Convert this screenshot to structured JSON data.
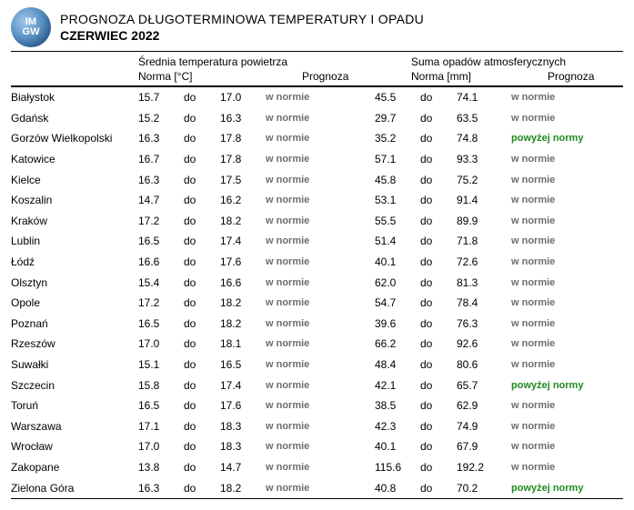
{
  "title": "PROGNOZA DŁUGOTERMINOWA TEMPERATURY I OPADU",
  "subtitle": "CZERWIEC 2022",
  "logo_text_top": "IM",
  "logo_text_bottom": "GW",
  "columns": {
    "temp_group": "Średnia temperatura powietrza",
    "precip_group": "Suma opadów atmosferycznych",
    "norma_temp": "Norma [°C]",
    "norma_precip": "Norma [mm]",
    "prognoza": "Prognoza",
    "do": "do"
  },
  "forecast_labels": {
    "normal": "w normie",
    "above": "powyżej normy"
  },
  "colors": {
    "normal": "#6e6e6e",
    "above": "#1f8a1f",
    "text": "#000000",
    "background": "#ffffff"
  },
  "rows": [
    {
      "city": "Białystok",
      "t_lo": "15.7",
      "t_hi": "17.0",
      "t_fc": "normal",
      "p_lo": "45.5",
      "p_hi": "74.1",
      "p_fc": "normal"
    },
    {
      "city": "Gdańsk",
      "t_lo": "15.2",
      "t_hi": "16.3",
      "t_fc": "normal",
      "p_lo": "29.7",
      "p_hi": "63.5",
      "p_fc": "normal"
    },
    {
      "city": "Gorzów Wielkopolski",
      "t_lo": "16.3",
      "t_hi": "17.8",
      "t_fc": "normal",
      "p_lo": "35.2",
      "p_hi": "74.8",
      "p_fc": "above"
    },
    {
      "city": "Katowice",
      "t_lo": "16.7",
      "t_hi": "17.8",
      "t_fc": "normal",
      "p_lo": "57.1",
      "p_hi": "93.3",
      "p_fc": "normal"
    },
    {
      "city": "Kielce",
      "t_lo": "16.3",
      "t_hi": "17.5",
      "t_fc": "normal",
      "p_lo": "45.8",
      "p_hi": "75.2",
      "p_fc": "normal"
    },
    {
      "city": "Koszalin",
      "t_lo": "14.7",
      "t_hi": "16.2",
      "t_fc": "normal",
      "p_lo": "53.1",
      "p_hi": "91.4",
      "p_fc": "normal"
    },
    {
      "city": "Kraków",
      "t_lo": "17.2",
      "t_hi": "18.2",
      "t_fc": "normal",
      "p_lo": "55.5",
      "p_hi": "89.9",
      "p_fc": "normal"
    },
    {
      "city": "Lublin",
      "t_lo": "16.5",
      "t_hi": "17.4",
      "t_fc": "normal",
      "p_lo": "51.4",
      "p_hi": "71.8",
      "p_fc": "normal"
    },
    {
      "city": "Łódź",
      "t_lo": "16.6",
      "t_hi": "17.6",
      "t_fc": "normal",
      "p_lo": "40.1",
      "p_hi": "72.6",
      "p_fc": "normal"
    },
    {
      "city": "Olsztyn",
      "t_lo": "15.4",
      "t_hi": "16.6",
      "t_fc": "normal",
      "p_lo": "62.0",
      "p_hi": "81.3",
      "p_fc": "normal"
    },
    {
      "city": "Opole",
      "t_lo": "17.2",
      "t_hi": "18.2",
      "t_fc": "normal",
      "p_lo": "54.7",
      "p_hi": "78.4",
      "p_fc": "normal"
    },
    {
      "city": "Poznań",
      "t_lo": "16.5",
      "t_hi": "18.2",
      "t_fc": "normal",
      "p_lo": "39.6",
      "p_hi": "76.3",
      "p_fc": "normal"
    },
    {
      "city": "Rzeszów",
      "t_lo": "17.0",
      "t_hi": "18.1",
      "t_fc": "normal",
      "p_lo": "66.2",
      "p_hi": "92.6",
      "p_fc": "normal"
    },
    {
      "city": "Suwałki",
      "t_lo": "15.1",
      "t_hi": "16.5",
      "t_fc": "normal",
      "p_lo": "48.4",
      "p_hi": "80.6",
      "p_fc": "normal"
    },
    {
      "city": "Szczecin",
      "t_lo": "15.8",
      "t_hi": "17.4",
      "t_fc": "normal",
      "p_lo": "42.1",
      "p_hi": "65.7",
      "p_fc": "above"
    },
    {
      "city": "Toruń",
      "t_lo": "16.5",
      "t_hi": "17.6",
      "t_fc": "normal",
      "p_lo": "38.5",
      "p_hi": "62.9",
      "p_fc": "normal"
    },
    {
      "city": "Warszawa",
      "t_lo": "17.1",
      "t_hi": "18.3",
      "t_fc": "normal",
      "p_lo": "42.3",
      "p_hi": "74.9",
      "p_fc": "normal"
    },
    {
      "city": "Wrocław",
      "t_lo": "17.0",
      "t_hi": "18.3",
      "t_fc": "normal",
      "p_lo": "40.1",
      "p_hi": "67.9",
      "p_fc": "normal"
    },
    {
      "city": "Zakopane",
      "t_lo": "13.8",
      "t_hi": "14.7",
      "t_fc": "normal",
      "p_lo": "115.6",
      "p_hi": "192.2",
      "p_fc": "normal"
    },
    {
      "city": "Zielona Góra",
      "t_lo": "16.3",
      "t_hi": "18.2",
      "t_fc": "normal",
      "p_lo": "40.8",
      "p_hi": "70.2",
      "p_fc": "above"
    }
  ]
}
